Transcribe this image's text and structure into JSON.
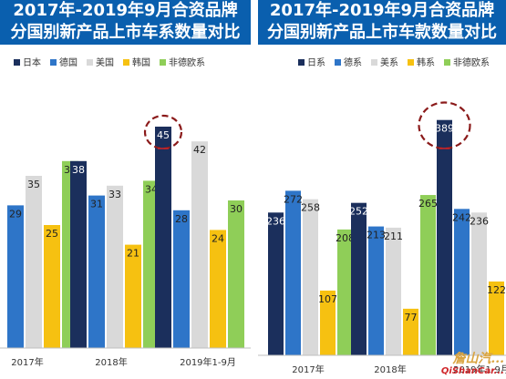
{
  "colors": {
    "title_bg": "#0a5fae",
    "series": [
      "#1b2f5c",
      "#2e75c8",
      "#d9d9d9",
      "#f6c111",
      "#8fce58"
    ],
    "highlight_circle": "#8b1a1a"
  },
  "chart_data": [
    {
      "type": "bar",
      "title": "2017年-2019年9月合资品牌",
      "subtitle": "分国别新产品上市车系数量对比",
      "legend_position": "top",
      "categories": [
        "2017年",
        "2018年",
        "2019年1-9月"
      ],
      "series": [
        {
          "name": "日本",
          "values": [
            null,
            38,
            45
          ]
        },
        {
          "name": "德国",
          "values": [
            29,
            31,
            28
          ]
        },
        {
          "name": "美国",
          "values": [
            35,
            33,
            42
          ]
        },
        {
          "name": "韩国",
          "values": [
            25,
            21,
            24
          ]
        },
        {
          "name": "非德欧系",
          "values": [
            38,
            34,
            30
          ]
        }
      ],
      "highlight": {
        "series": "日本",
        "category": "2019年1-9月",
        "value": 45
      },
      "ylim": [
        0,
        60
      ],
      "grid": false
    },
    {
      "type": "bar",
      "title": "2017年-2019年9月合资品牌",
      "subtitle": "分国别新产品上市车款数量对比",
      "legend_position": "top",
      "categories": [
        "2017年",
        "2018年",
        "2019年1-9月"
      ],
      "series": [
        {
          "name": "日系",
          "values": [
            236,
            252,
            389
          ]
        },
        {
          "name": "德系",
          "values": [
            272,
            213,
            242
          ]
        },
        {
          "name": "美系",
          "values": [
            258,
            211,
            236
          ]
        },
        {
          "name": "韩系",
          "values": [
            107,
            77,
            122
          ]
        },
        {
          "name": "非德欧系",
          "values": [
            208,
            265,
            null
          ]
        }
      ],
      "highlight": {
        "series": "日系",
        "category": "2019年1-9月",
        "value": 389
      },
      "ylim": [
        0,
        500
      ],
      "grid": false
    }
  ],
  "watermark": {
    "cn": "詹山汽...",
    "en": "QiShanCar..."
  }
}
